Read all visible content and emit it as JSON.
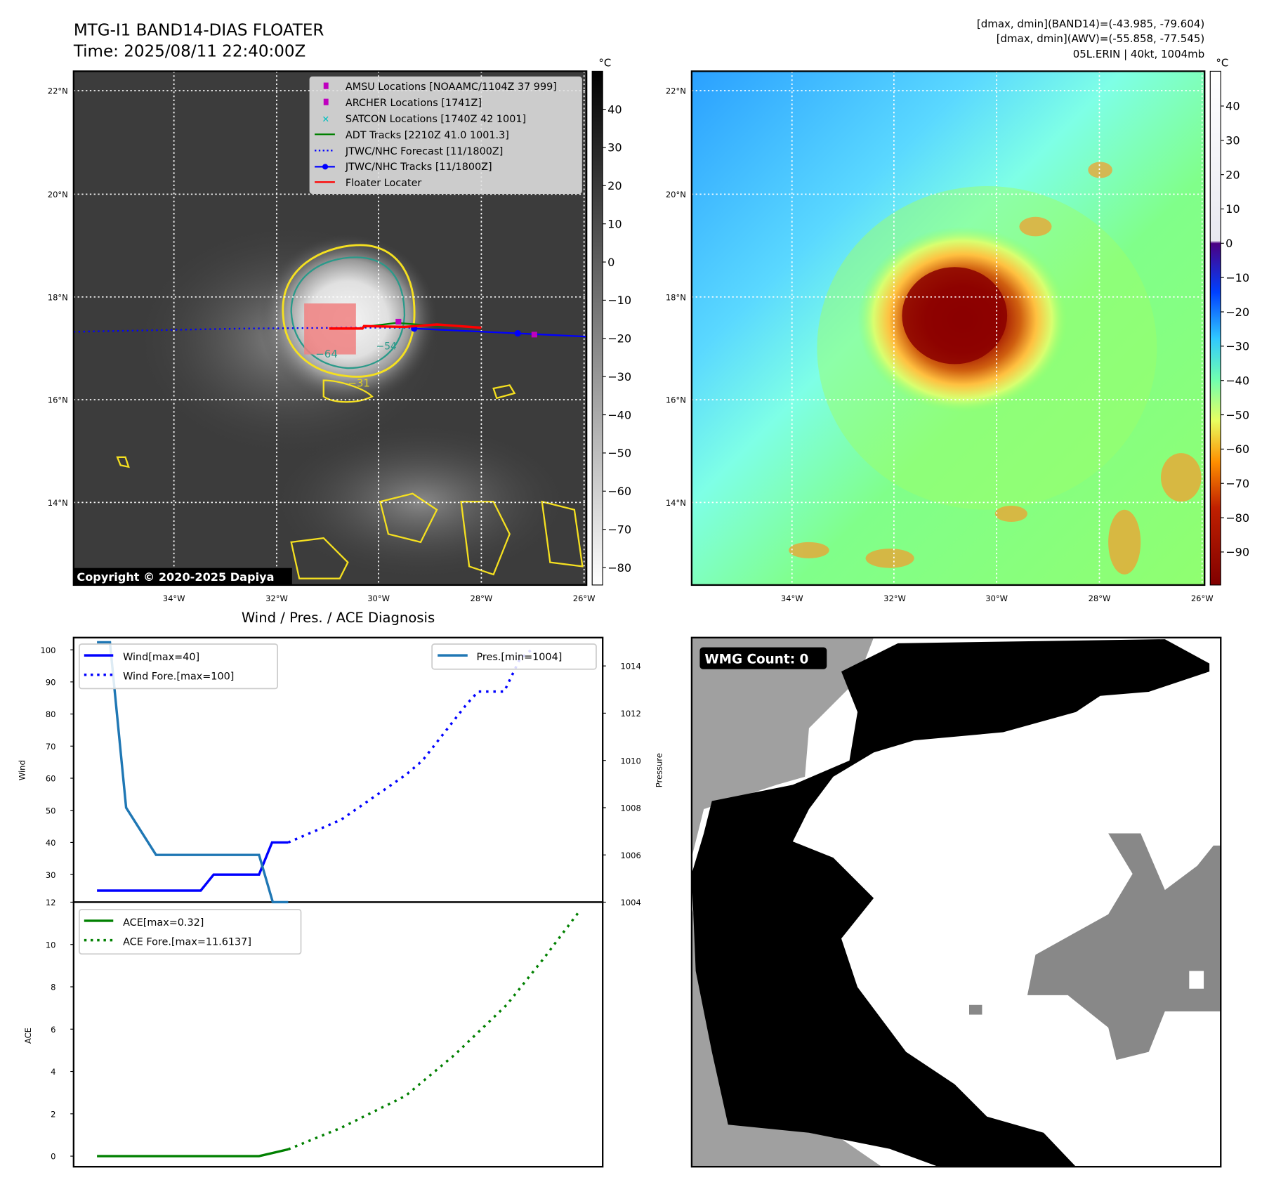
{
  "header": {
    "title": "MTG-I1 BAND14-DIAS FLOATER",
    "time": "Time: 2025/08/11 22:40:00Z",
    "info_line1": "[dmax, dmin](BAND14)=(-43.985, -79.604)",
    "info_line2": "[dmax, dmin](AWV)=(-55.858, -77.545)",
    "info_line3": "05L.ERIN | 40kt, 1004mb"
  },
  "map": {
    "lat_labels": [
      "22°N",
      "20°N",
      "18°N",
      "16°N",
      "14°N"
    ],
    "lon_labels": [
      "34°W",
      "32°W",
      "30°W",
      "28°W",
      "26°W"
    ],
    "colorbar_unit": "°C",
    "colorbar_left_ticks": [
      "40",
      "30",
      "20",
      "10",
      "0",
      "−10",
      "−20",
      "−30",
      "−40",
      "−50",
      "−60",
      "−70",
      "−80"
    ],
    "colorbar_right_ticks": [
      "40",
      "30",
      "20",
      "10",
      "0",
      "−10",
      "−20",
      "−30",
      "−40",
      "−50",
      "−60",
      "−70",
      "−80",
      "−90"
    ],
    "copyright": "Copyright © 2020-2025 Dapiya",
    "contour_labels": [
      "−64",
      "−54",
      "−31"
    ],
    "legend": [
      {
        "label": "AMSU Locations [NOAAMC/1104Z 37 999]",
        "color": "#bf00bf"
      },
      {
        "label": "ARCHER Locations [1741Z]",
        "color": "#bf00bf"
      },
      {
        "label": "SATCON Locations [1740Z 42 1001]",
        "color": "#00bfbf"
      },
      {
        "label": "ADT Tracks [2210Z 41.0 1001.3]",
        "color": "#008000"
      },
      {
        "label": "JTWC/NHC Forecast [11/1800Z]",
        "color": "#0000ff"
      },
      {
        "label": "JTWC/NHC Tracks [11/1800Z]",
        "color": "#0000ff"
      },
      {
        "label": "Floater Locater",
        "color": "#ff0000"
      }
    ]
  },
  "wmg": {
    "label": "WMG Count: 0"
  },
  "chart_data": [
    {
      "type": "line",
      "title": "Wind / Pres. / ACE Diagnosis",
      "ylabel": "Wind",
      "y2label": "Pressure",
      "ylim": [
        21.4,
        103.8
      ],
      "y2lim": [
        1004.0,
        1015.2
      ],
      "yticks": [
        30,
        40,
        50,
        60,
        70,
        80,
        90,
        100
      ],
      "y2ticks": [
        1004,
        1006,
        1008,
        1010,
        1012,
        1014
      ],
      "xlim": [
        -1.8,
        39
      ],
      "series": [
        {
          "name": "Wind[max=40]",
          "axis": "left",
          "color": "#0000ff",
          "style": "solid",
          "x": [
            0,
            8,
            9,
            12.5,
            13.5,
            14.75
          ],
          "y": [
            25,
            25,
            30,
            30,
            40,
            40
          ]
        },
        {
          "name": "Wind Fore.[max=100]",
          "axis": "left",
          "color": "#0000ff",
          "style": "dotted",
          "x": [
            14.75,
            18.8,
            23.8,
            25.1,
            28.5,
            29.4,
            31.4,
            32.6,
            33.5
          ],
          "y": [
            40,
            47,
            61,
            65.5,
            83,
            87,
            87,
            97,
            100
          ]
        },
        {
          "name": "Pres.[min=1004]",
          "axis": "right",
          "color": "#1f77b4",
          "style": "solid",
          "x": [
            0,
            1,
            2.25,
            4.56,
            12.5,
            13.56,
            14.75
          ],
          "y": [
            1015,
            1015,
            1008,
            1006,
            1006,
            1004,
            1004
          ]
        }
      ]
    },
    {
      "type": "line",
      "ylabel": "ACE",
      "ylim": [
        -0.5,
        12.0
      ],
      "yticks": [
        0,
        2,
        4,
        6,
        8,
        10,
        12
      ],
      "xlim": [
        -1.8,
        39
      ],
      "series": [
        {
          "name": "ACE[max=0.32]",
          "color": "#008000",
          "style": "solid",
          "x": [
            0,
            12.5,
            14.75
          ],
          "y": [
            0,
            0,
            0.32
          ]
        },
        {
          "name": "ACE Fore.[max=11.6137]",
          "color": "#008000",
          "style": "dotted",
          "x": [
            14.75,
            18.8,
            23.8,
            27.6,
            31.6,
            34.4,
            37.25
          ],
          "y": [
            0.32,
            1.33,
            2.85,
            4.8,
            7.15,
            9.3,
            11.61
          ]
        }
      ]
    }
  ]
}
